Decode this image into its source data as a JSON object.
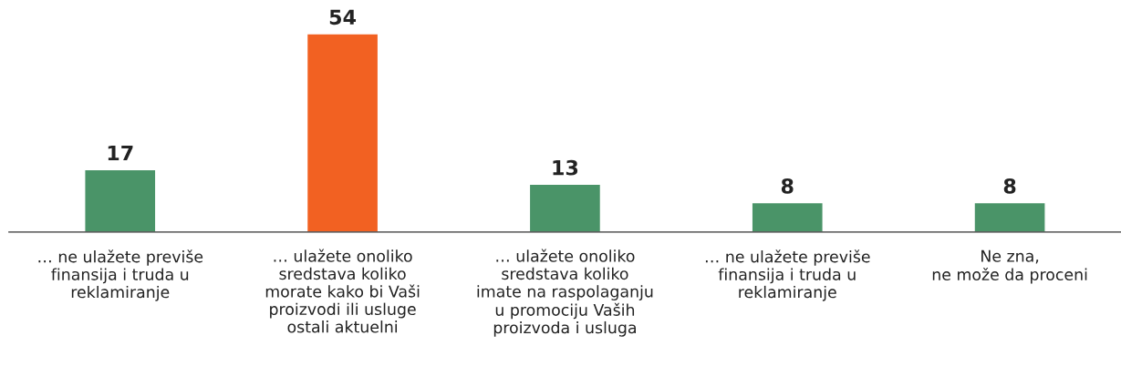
{
  "chart_data": {
    "type": "bar",
    "categories": [
      "… ne ulažete previše\nfinansija i truda u\nreklamiranje",
      "… ulažete onoliko\nsredstava koliko\nmorate kako bi Vaši\nproizvodi ili usluge\nostali aktuelni",
      "… ulažete onoliko\nsredstava koliko\nimate na raspolaganju\nu promociju Vaših\nproizvoda i usluga",
      "… ne ulažete previše\nfinansija i truda u\nreklamiranje",
      "Ne zna,\nne može da proceni"
    ],
    "values": [
      17,
      54,
      13,
      8,
      8
    ],
    "colors": [
      "#4a9468",
      "#f26122",
      "#4a9468",
      "#4a9468",
      "#4a9468"
    ],
    "data_labels": true,
    "tick_labels": "x",
    "grid": false
  }
}
